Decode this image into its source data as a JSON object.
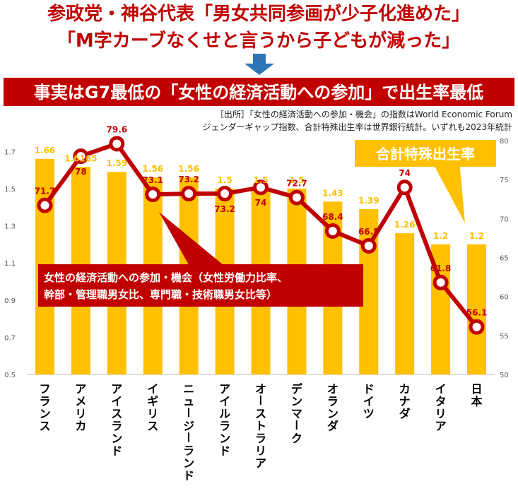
{
  "headline": {
    "line1": "参政党・神谷代表「男女共同参画が少子化進めた」",
    "line2": "「M字カーブなくせと言うから子どもが減った」"
  },
  "banner": "事実はG7最低の「女性の経済活動への参加」で出生率最低",
  "source": {
    "line1": "［出所］「女性の経済活動への参加・機会」の指数はWorld Economic Forum",
    "line2": "ジェンダーギャップ指数、合計特殊出生率は世界銀行統計。いずれも2023年統計"
  },
  "colors": {
    "headline": "#c00000",
    "banner_bg": "#c00000",
    "bar": "#ffc000",
    "line": "#c00000",
    "bar_label": "#ffc000",
    "line_label": "#c00000"
  },
  "chart_data": {
    "type": "bar",
    "categories": [
      "フランス",
      "アメリカ",
      "アイスランド",
      "イギリス",
      "ニュージーランド",
      "アイルランド",
      "オーストラリア",
      "デンマーク",
      "オランダ",
      "ドイツ",
      "カナダ",
      "イタリア",
      "日本"
    ],
    "series": [
      {
        "name": "合計特殊出生率",
        "type": "bar",
        "axis": "left",
        "values": [
          1.66,
          1.6165,
          1.59,
          1.56,
          1.56,
          1.5,
          1.5,
          1.5,
          1.43,
          1.39,
          1.26,
          1.2,
          1.2
        ],
        "labels": [
          "1.66",
          "1.6165",
          "1.59",
          "1.56",
          "1.56",
          "1.5",
          "1.5",
          "1.5",
          "1.43",
          "1.39",
          "1.26",
          "1.2",
          "1.2"
        ]
      },
      {
        "name": "女性の経済活動への参加・機会（女性労働力比率、幹部・管理職男女比、専門職・技術職男女比等）",
        "type": "line",
        "axis": "right",
        "values": [
          71.7,
          78,
          79.6,
          73.1,
          73.2,
          73.2,
          74,
          72.7,
          68.4,
          66.5,
          74,
          61.8,
          56.1
        ],
        "labels": [
          "71.7",
          "78",
          "79.6",
          "73.1",
          "73.2",
          "73.2",
          "74",
          "72.7",
          "68.4",
          "66.5",
          "74",
          "61.8",
          "56.1"
        ]
      }
    ],
    "y_left": {
      "min": 0.5,
      "max": 1.8,
      "ticks": [
        "0.5",
        "0.7",
        "0.9",
        "1.1",
        "1.3",
        "1.5",
        "1.7"
      ]
    },
    "y_right": {
      "min": 50,
      "max": 81,
      "ticks": [
        "50",
        "55",
        "60",
        "65",
        "70",
        "75",
        "80"
      ]
    },
    "callout_fertility": "合計特殊出生率",
    "callout_participation": {
      "line1": "女性の経済活動への参加・機会（女性労働力比率、",
      "line2": "幹部・管理職男女比、専門職・技術職男女比等）"
    },
    "grid": false
  }
}
